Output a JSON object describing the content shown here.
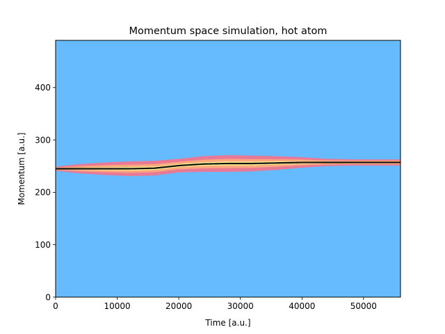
{
  "chart_data": {
    "type": "heatmap",
    "title": "Momentum space simulation, hot atom",
    "xlabel": "Time [a.u.]",
    "ylabel": "Momentum [a.u.]",
    "xlim": [
      0,
      56000
    ],
    "ylim": [
      0,
      490
    ],
    "x_ticks": [
      0,
      10000,
      20000,
      30000,
      40000,
      50000
    ],
    "y_ticks": [
      0,
      100,
      200,
      300,
      400
    ],
    "x_tick_labels": [
      "0",
      "10000",
      "20000",
      "30000",
      "40000",
      "50000"
    ],
    "y_tick_labels": [
      "0",
      "100",
      "200",
      "300",
      "400"
    ],
    "grid": false,
    "background_color": "#66bbff",
    "colors": {
      "wing": "#ff6f82",
      "mid": "#ffb07a",
      "core": "#ffff99",
      "center_line": "#111111",
      "frame": "#000000"
    },
    "center_trace": {
      "time": [
        0,
        4000,
        8000,
        12000,
        16000,
        20000,
        24000,
        28000,
        32000,
        36000,
        40000,
        44000,
        48000,
        52000,
        56000
      ],
      "momentum": [
        245,
        245,
        245,
        245,
        246,
        251,
        254,
        255,
        255,
        256,
        257,
        257,
        257,
        257,
        257
      ]
    },
    "spread_halfwidth": {
      "time": [
        0,
        4000,
        8000,
        12000,
        16000,
        20000,
        24000,
        28000,
        32000,
        36000,
        40000,
        44000,
        48000,
        52000,
        56000
      ],
      "momentum": [
        4,
        9,
        12,
        14,
        14,
        13,
        15,
        16,
        15,
        13,
        10,
        7,
        6,
        6,
        6
      ]
    }
  }
}
